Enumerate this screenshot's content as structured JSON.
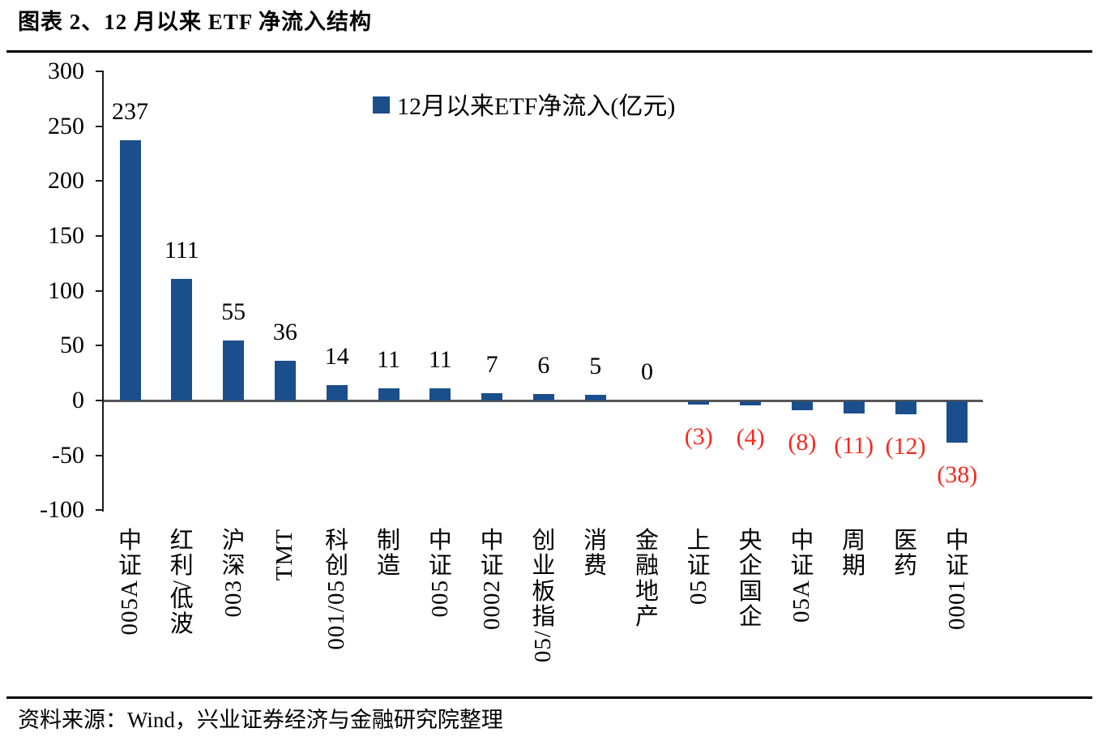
{
  "title": "图表 2、12 月以来 ETF 净流入结构",
  "source": "资料来源：Wind，兴业证券经济与金融研究院整理",
  "chart_data": {
    "type": "bar",
    "title": "图表 2、12 月以来 ETF 净流入结构",
    "legend": "12月以来ETF净流入(亿元)",
    "legend_position": "top-center",
    "categories": [
      "中证A500",
      "红利/低波",
      "沪深300",
      "TMT",
      "科创50/100",
      "制造",
      "中证500",
      "中证2000",
      "创业板指/50",
      "消费",
      "金融地产",
      "上证50",
      "央企国企",
      "中证A50",
      "周期",
      "医药",
      "中证1000"
    ],
    "values": [
      237,
      111,
      55,
      36,
      14,
      11,
      11,
      7,
      6,
      5,
      0,
      -3,
      -4,
      -8,
      -11,
      -12,
      -38
    ],
    "value_labels": [
      "237",
      "111",
      "55",
      "36",
      "14",
      "11",
      "11",
      "7",
      "6",
      "5",
      "0",
      "(3)",
      "(4)",
      "(8)",
      "(11)",
      "(12)",
      "(38)"
    ],
    "ylabel": "",
    "xlabel": "",
    "ylim": [
      -100,
      300
    ],
    "yticks": [
      300,
      250,
      200,
      150,
      100,
      50,
      0,
      -50,
      -100
    ],
    "grid": false,
    "bar_color": "#1B4E8C",
    "positive_label_color": "#000000",
    "negative_label_color": "#F8281C",
    "axis_color": "#1a1a1a",
    "zero_line_color": "#555555"
  }
}
